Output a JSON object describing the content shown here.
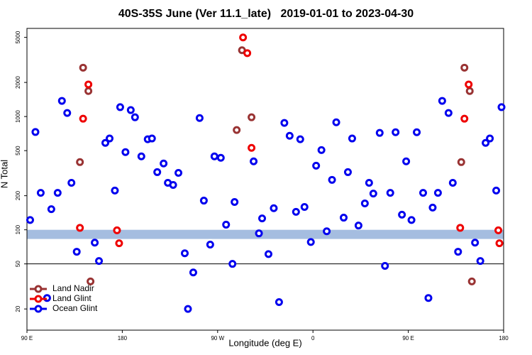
{
  "chart_data": {
    "type": "scatter",
    "title": "40S-35S June (Ver 11.1_late)   2019-01-01 to 2023-04-30",
    "x_label": "Longitude (deg E)",
    "y_label": "N Total",
    "xlim": [
      90,
      540
    ],
    "xticks": [
      {
        "value": 90,
        "label": "90 E"
      },
      {
        "value": 180,
        "label": "180"
      },
      {
        "value": 270,
        "label": "90 W"
      },
      {
        "value": 360,
        "label": "0"
      },
      {
        "value": 450,
        "label": "90 E"
      },
      {
        "value": 540,
        "label": "180"
      }
    ],
    "ylim": [
      13,
      6000
    ],
    "yticks": [
      20,
      50,
      100,
      200,
      500,
      1000,
      2000,
      5000
    ],
    "log_y": true,
    "hline": 50,
    "band": [
      83,
      100
    ],
    "band_color": "#a5bde0",
    "legend": "lower left",
    "series": [
      {
        "name": "Land Nadir",
        "color": "#993333",
        "x": [
          143,
          148,
          140,
          150,
          288,
          293,
          302,
          500,
          503,
          508,
          510
        ],
        "values": [
          2700,
          1680,
          396,
          35,
          760,
          3850,
          985,
          396,
          2700,
          1680,
          35
        ]
      },
      {
        "name": "Land Glint",
        "color": "#ee0000",
        "x": [
          140,
          143,
          148,
          175,
          177,
          294,
          298,
          302,
          499,
          503,
          507,
          535,
          536
        ],
        "values": [
          104,
          957,
          1920,
          99,
          76,
          4990,
          3630,
          529,
          104,
          957,
          1920,
          99,
          76
        ]
      },
      {
        "name": "Ocean Glint",
        "color": "#0000ee",
        "x": [
          93,
          98,
          103,
          109,
          113,
          119,
          123,
          128,
          132,
          137,
          154,
          158,
          164,
          168,
          173,
          178,
          183,
          188,
          192,
          198,
          204,
          208,
          213,
          219,
          223,
          228,
          233,
          239,
          242,
          247,
          253,
          257,
          263,
          267,
          273,
          278,
          284,
          286,
          304,
          309,
          312,
          318,
          323,
          328,
          333,
          338,
          344,
          348,
          352,
          358,
          363,
          368,
          373,
          378,
          382,
          389,
          393,
          397,
          403,
          409,
          413,
          417,
          423,
          428,
          433,
          438,
          444,
          448,
          453,
          458,
          464,
          469,
          473,
          478,
          482,
          488,
          492,
          497,
          513,
          518,
          523,
          527,
          533,
          538
        ],
        "values": [
          122,
          730,
          212,
          25,
          152,
          212,
          1375,
          1075,
          260,
          64,
          77,
          53,
          585,
          640,
          222,
          1210,
          485,
          1140,
          985,
          445,
          630,
          640,
          323,
          385,
          260,
          249,
          318,
          62,
          20,
          42,
          970,
          181,
          74,
          445,
          432,
          111,
          50,
          176,
          402,
          93,
          126,
          61,
          155,
          23,
          878,
          676,
          144,
          630,
          159,
          78,
          368,
          506,
          97,
          276,
          890,
          128,
          323,
          640,
          109,
          171,
          260,
          209,
          717,
          48,
          212,
          727,
          136,
          402,
          122,
          727,
          212,
          25,
          157,
          212,
          1375,
          1075,
          260,
          64,
          77,
          53,
          585,
          640,
          222,
          1210
        ]
      }
    ]
  }
}
